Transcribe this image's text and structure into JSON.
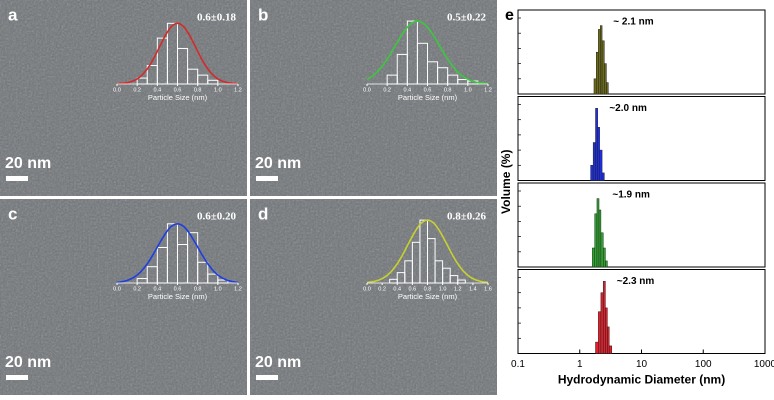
{
  "chart_data": [
    {
      "type": "histogram",
      "panel": "a",
      "scale_bar": "20 nm",
      "annotation": "0.6±0.18",
      "xlabel": "Particle Size (nm)",
      "color": "#d42a2a",
      "bins": [
        0.2,
        0.3,
        0.4,
        0.5,
        0.6,
        0.7,
        0.8,
        0.9,
        1.0
      ],
      "values": [
        8,
        25,
        62,
        82,
        48,
        20,
        12,
        5
      ],
      "fit_mean": 0.6,
      "fit_sd": 0.18,
      "xlim": [
        0,
        1.2
      ],
      "ylim": [
        0,
        100
      ],
      "xticks": [
        {
          "value": 0,
          "label": "0.0"
        },
        0.2,
        0.4,
        0.6,
        0.8,
        {
          "value": 1,
          "label": "1.0"
        },
        1.2
      ]
    },
    {
      "type": "histogram",
      "panel": "b",
      "scale_bar": "20 nm",
      "annotation": "0.5±0.22",
      "xlabel": "Particle Size (nm)",
      "color": "#3cc83c",
      "bins": [
        0.2,
        0.3,
        0.4,
        0.5,
        0.6,
        0.7,
        0.8,
        0.9,
        1.0,
        1.1
      ],
      "values": [
        12,
        40,
        85,
        55,
        30,
        22,
        12,
        6,
        4
      ],
      "fit_mean": 0.5,
      "fit_sd": 0.22,
      "xlim": [
        0,
        1.2
      ],
      "ylim": [
        0,
        100
      ],
      "xticks": [
        {
          "value": 0,
          "label": "0.0"
        },
        0.2,
        0.4,
        0.6,
        0.8,
        {
          "value": 1,
          "label": "1.0"
        },
        1.2
      ]
    },
    {
      "type": "histogram",
      "panel": "c",
      "scale_bar": "20 nm",
      "annotation": "0.6±0.20",
      "xlabel": "Particle Size (nm)",
      "color": "#1e3ee0",
      "bins": [
        0.2,
        0.3,
        0.4,
        0.5,
        0.6,
        0.7,
        0.8,
        0.9,
        1.0,
        1.1
      ],
      "values": [
        6,
        22,
        48,
        80,
        52,
        68,
        28,
        12,
        4
      ],
      "fit_mean": 0.6,
      "fit_sd": 0.2,
      "xlim": [
        0,
        1.2
      ],
      "ylim": [
        0,
        100
      ],
      "xticks": [
        {
          "value": 0,
          "label": "0.0"
        },
        0.2,
        0.4,
        0.6,
        0.8,
        {
          "value": 1,
          "label": "1.0"
        },
        1.2
      ]
    },
    {
      "type": "histogram",
      "panel": "d",
      "scale_bar": "20 nm",
      "annotation": "0.8±0.26",
      "xlabel": "Particle Size (nm)",
      "color": "#c8d030",
      "bins": [
        0.3,
        0.4,
        0.5,
        0.6,
        0.7,
        0.8,
        0.9,
        1.0,
        1.1,
        1.2,
        1.3
      ],
      "values": [
        5,
        14,
        30,
        55,
        85,
        60,
        30,
        20,
        10,
        4
      ],
      "fit_mean": 0.8,
      "fit_sd": 0.26,
      "xlim": [
        0,
        1.6
      ],
      "ylim": [
        0,
        100
      ],
      "xticks": [
        {
          "value": 0,
          "label": "0.0"
        },
        0.2,
        0.4,
        0.6,
        0.8,
        {
          "value": 1,
          "label": "1.0"
        },
        1.2,
        1.4,
        1.6
      ]
    },
    {
      "type": "histogram",
      "panel": "e",
      "log_x": true,
      "xlabel": "Hydrodynamic Diameter (nm)",
      "ylabel": "Volume (%)",
      "xlim": [
        0.1,
        1000
      ],
      "xticks": [
        0.1,
        1,
        10,
        100,
        1000
      ],
      "ylim": [
        0,
        100
      ],
      "subplots": [
        {
          "annotation": "~ 2.1 nm",
          "color": "#6b6a1c",
          "bins": [
            1.7,
            1.85,
            2.0,
            2.15,
            2.3,
            2.5,
            2.7,
            2.9
          ],
          "values": [
            20,
            55,
            85,
            90,
            70,
            40,
            15
          ]
        },
        {
          "annotation": "~2.0 nm",
          "color": "#1d2fe0",
          "bins": [
            1.5,
            1.65,
            1.8,
            1.95,
            2.1,
            2.3,
            2.5
          ],
          "values": [
            20,
            50,
            95,
            70,
            40,
            10
          ]
        },
        {
          "annotation": "~1.9 nm",
          "color": "#2ea62e",
          "bins": [
            1.6,
            1.75,
            1.9,
            2.05,
            2.2,
            2.4,
            2.6,
            2.8
          ],
          "values": [
            25,
            70,
            90,
            75,
            45,
            25,
            8
          ]
        },
        {
          "annotation": "~2.3 nm",
          "color": "#e0202c",
          "bins": [
            1.8,
            2.0,
            2.2,
            2.4,
            2.6,
            2.8,
            3.0,
            3.3
          ],
          "values": [
            15,
            55,
            80,
            95,
            60,
            35,
            10
          ]
        }
      ]
    }
  ]
}
